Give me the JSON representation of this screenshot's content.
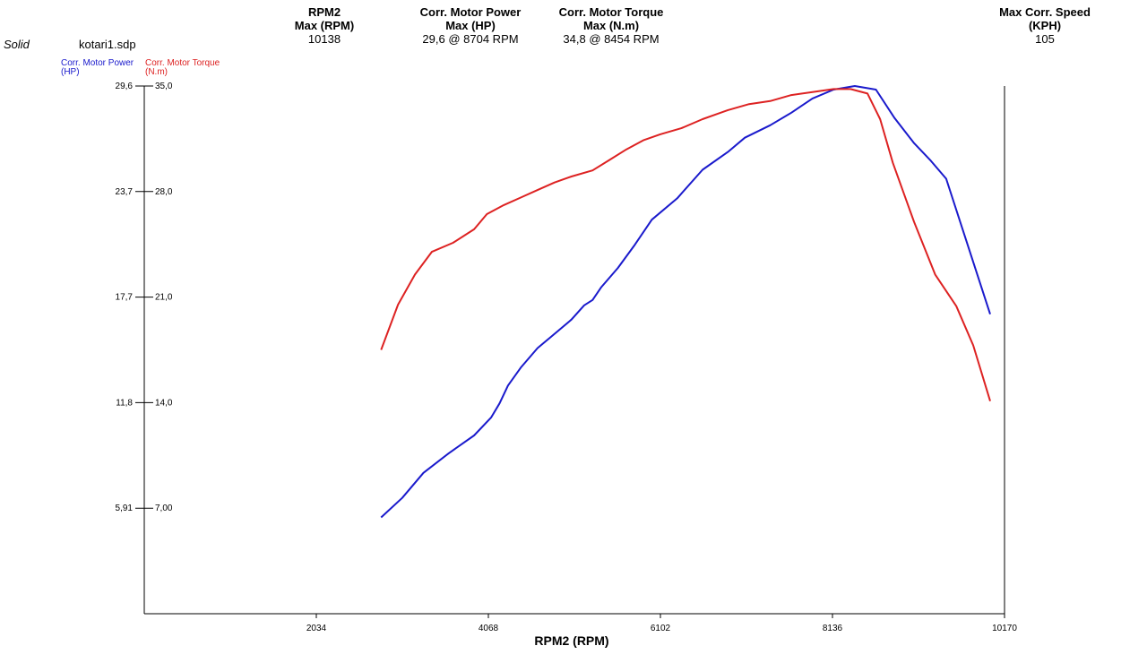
{
  "header": {
    "style_label": "Solid",
    "file_name": "kotari1.sdp",
    "columns": [
      {
        "title_line1": "RPM2",
        "title_line2": "Max (RPM)",
        "value": "10138"
      },
      {
        "title_line1": "Corr. Motor Power",
        "title_line2": "Max (HP)",
        "value": "29,6 @ 8704 RPM"
      },
      {
        "title_line1": "Corr. Motor Torque",
        "title_line2": "Max (N.m)",
        "value": "34,8 @ 8454 RPM"
      },
      {
        "title_line1": "Max Corr. Speed",
        "title_line2": "(KPH)",
        "value": "105"
      }
    ]
  },
  "legend": {
    "power_line1": "Corr. Motor Power",
    "power_line2": "(HP)",
    "torque_line1": "Corr. Motor Torque",
    "torque_line2": "(N.m)"
  },
  "colors": {
    "power": "#1a1acc",
    "torque": "#dd2222",
    "axis": "#000000"
  },
  "chart_data": {
    "type": "line",
    "xlabel": "RPM2 (RPM)",
    "xlim": [
      0,
      10170
    ],
    "x_ticks": [
      2034,
      4068,
      6102,
      8136,
      10170
    ],
    "x_tick_labels": [
      "2034",
      "4068",
      "6102",
      "8136",
      "10170"
    ],
    "y_left_label": "Corr. Motor Power (HP)",
    "y_left_ticks": [
      "29,6",
      "23,7",
      "17,7",
      "11,8",
      "5,91"
    ],
    "y_left_lim": [
      0,
      29.6
    ],
    "y_right_label": "Corr. Motor Torque (N.m)",
    "y_right_ticks": [
      "35,0",
      "28,0",
      "21,0",
      "14,0",
      "7,00"
    ],
    "y_right_lim": [
      0,
      35
    ],
    "grid": false,
    "series": [
      {
        "name": "Corr. Motor Power",
        "axis": "left",
        "x": [
          2800,
          3050,
          3300,
          3600,
          3900,
          4100,
          4200,
          4300,
          4450,
          4650,
          4800,
          5050,
          5200,
          5300,
          5400,
          5600,
          5800,
          6000,
          6300,
          6600,
          6900,
          7100,
          7400,
          7650,
          7900,
          8150,
          8400,
          8650,
          8870,
          9100,
          9300,
          9480,
          10000
        ],
        "y": [
          5.4,
          6.5,
          7.9,
          9.0,
          10.0,
          11.0,
          11.8,
          12.8,
          13.8,
          14.9,
          15.5,
          16.5,
          17.3,
          17.6,
          18.3,
          19.4,
          20.7,
          22.1,
          23.3,
          24.9,
          25.9,
          26.7,
          27.4,
          28.1,
          28.9,
          29.4,
          29.6,
          29.4,
          27.8,
          26.4,
          25.4,
          24.4,
          16.8
        ]
      },
      {
        "name": "Corr. Motor Torque",
        "axis": "right",
        "x": [
          2800,
          3000,
          3200,
          3400,
          3650,
          3900,
          4050,
          4250,
          4450,
          4650,
          4850,
          5050,
          5300,
          5500,
          5700,
          5900,
          6100,
          6350,
          6600,
          6900,
          7150,
          7400,
          7650,
          7900,
          8150,
          8350,
          8550,
          8700,
          8850,
          9100,
          9350,
          9600,
          9800,
          10000
        ],
        "y": [
          17.5,
          20.5,
          22.5,
          24.0,
          24.6,
          25.5,
          26.5,
          27.1,
          27.6,
          28.1,
          28.6,
          29.0,
          29.4,
          30.1,
          30.8,
          31.4,
          31.8,
          32.2,
          32.8,
          33.4,
          33.8,
          34.0,
          34.4,
          34.6,
          34.8,
          34.8,
          34.5,
          32.8,
          29.9,
          26.0,
          22.5,
          20.4,
          17.8,
          14.1
        ]
      }
    ]
  }
}
